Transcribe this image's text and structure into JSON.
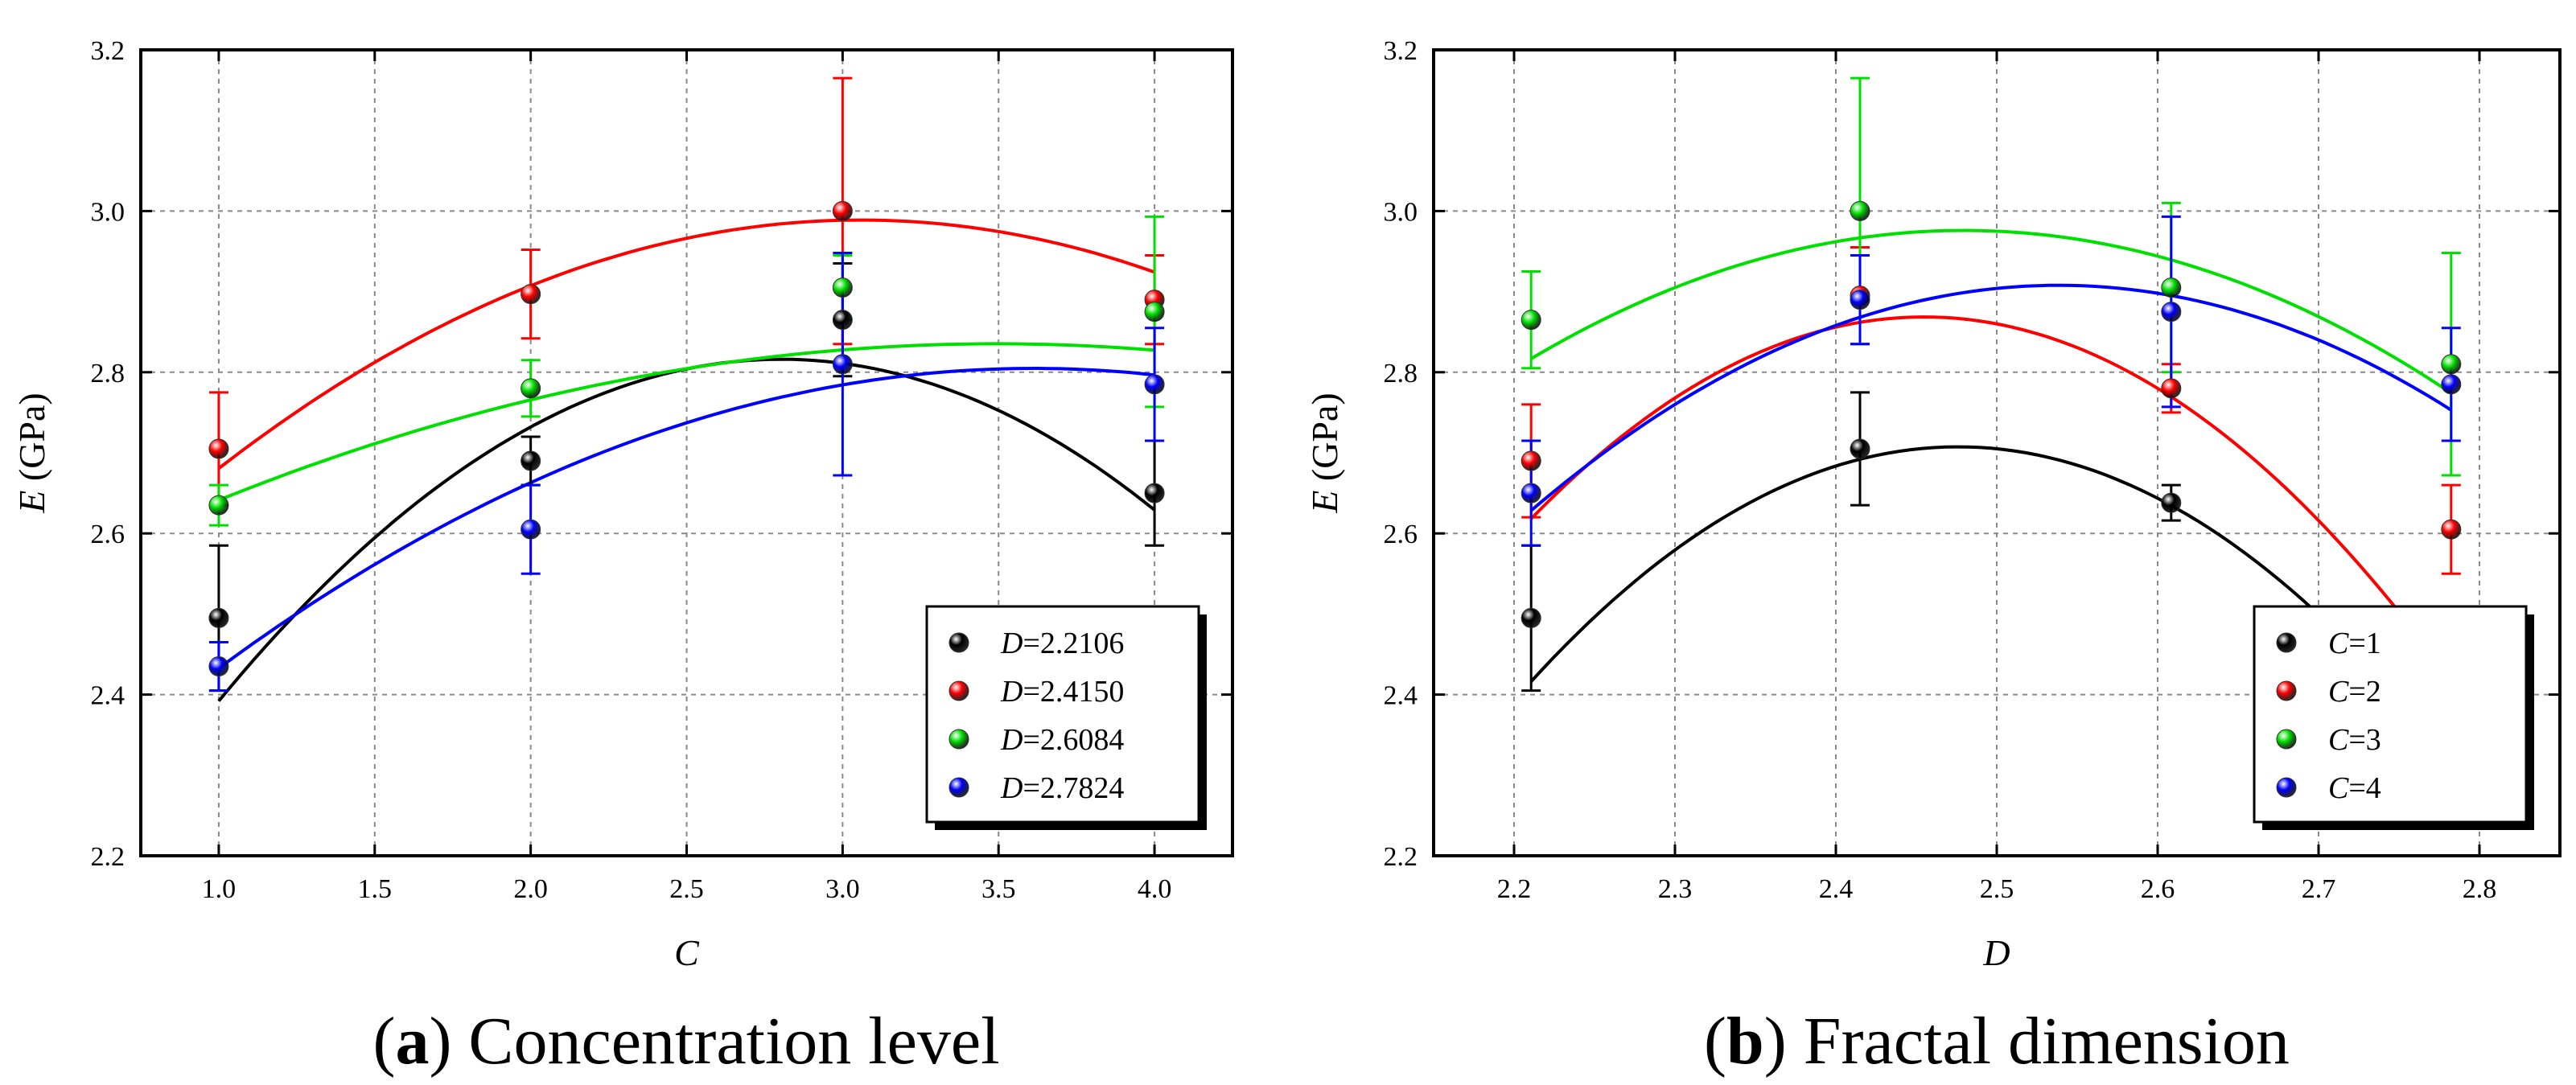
{
  "chart_data": [
    {
      "type": "scatter",
      "panel": "a",
      "caption_letter": "a",
      "caption_text": " Concentration level",
      "xlabel": "C",
      "ylabel_var": "E",
      "ylabel_unit": " (GPa)",
      "xlim": [
        0.75,
        4.25
      ],
      "ylim": [
        2.2,
        3.2
      ],
      "xticks": [
        1.0,
        1.5,
        2.0,
        2.5,
        3.0,
        3.5,
        4.0
      ],
      "xtick_labels": [
        "1.0",
        "1.5",
        "2.0",
        "2.5",
        "3.0",
        "3.5",
        "4.0"
      ],
      "yticks": [
        2.2,
        2.4,
        2.6,
        2.8,
        3.0,
        3.2
      ],
      "ytick_labels": [
        "2.2",
        "2.4",
        "2.6",
        "2.8",
        "3.0",
        "3.2"
      ],
      "grid": true,
      "legend_position": "bottom-right",
      "legend_var": "D",
      "x": [
        1.0,
        2.0,
        3.0,
        4.0
      ],
      "series": [
        {
          "name": "=2.2106",
          "color": "#000000",
          "values": [
            2.495,
            2.69,
            2.865,
            2.65
          ],
          "err": [
            0.09,
            0.03,
            0.07,
            0.065
          ],
          "fit": [
            -0.1305,
            0.7315,
            1.791
          ]
        },
        {
          "name": "=2.4150",
          "color": "#ff0000",
          "values": [
            2.705,
            2.897,
            3.0,
            2.89
          ],
          "err": [
            0.07,
            0.055,
            0.165,
            0.055
          ],
          "fit": [
            -0.0728,
            0.4452,
            2.3082
          ]
        },
        {
          "name": "=2.6084",
          "color": "#00e000",
          "values": [
            2.635,
            2.78,
            2.905,
            2.875
          ],
          "err": [
            0.025,
            0.035,
            0.04,
            0.118
          ],
          "fit": [
            -0.0312,
            0.218,
            2.4545
          ]
        },
        {
          "name": "=2.7824",
          "color": "#0000ff",
          "values": [
            2.435,
            2.605,
            2.81,
            2.785
          ],
          "err": [
            0.03,
            0.055,
            0.138,
            0.07
          ],
          "fit": [
            -0.0545,
            0.3938,
            2.0934
          ]
        }
      ]
    },
    {
      "type": "scatter",
      "panel": "b",
      "caption_letter": "b",
      "caption_text": " Fractal dimension",
      "xlabel": "D",
      "ylabel_var": "E",
      "ylabel_unit": " (GPa)",
      "xlim": [
        2.15,
        2.85
      ],
      "ylim": [
        2.2,
        3.2
      ],
      "xticks": [
        2.2,
        2.3,
        2.4,
        2.5,
        2.6,
        2.7,
        2.8
      ],
      "xtick_labels": [
        "2.2",
        "2.3",
        "2.4",
        "2.5",
        "2.6",
        "2.7",
        "2.8"
      ],
      "yticks": [
        2.2,
        2.4,
        2.6,
        2.8,
        3.0,
        3.2
      ],
      "ytick_labels": [
        "2.2",
        "2.4",
        "2.6",
        "2.8",
        "3.0",
        "3.2"
      ],
      "grid": true,
      "legend_position": "bottom-right",
      "legend_var": "C",
      "x": [
        2.2106,
        2.415,
        2.6084,
        2.7824
      ],
      "series": [
        {
          "name": "=1",
          "color": "#000000",
          "values": [
            2.495,
            2.705,
            2.638,
            2.435
          ],
          "err": [
            0.09,
            0.07,
            0.022,
            0.025
          ],
          "fit": [
            -4.14,
            20.5,
            -22.67
          ]
        },
        {
          "name": "=2",
          "color": "#ff0000",
          "values": [
            2.69,
            2.895,
            2.78,
            2.605
          ],
          "err": [
            0.07,
            0.06,
            0.03,
            0.055
          ],
          "fit": [
            -4.2,
            20.62,
            -22.44
          ]
        },
        {
          "name": "=3",
          "color": "#00e000",
          "values": [
            2.865,
            3.0,
            2.905,
            2.81
          ],
          "err": [
            0.06,
            0.165,
            0.105,
            0.138
          ],
          "fit": [
            -2.2,
            10.91,
            -10.55
          ]
        },
        {
          "name": "=4",
          "color": "#0000ff",
          "values": [
            2.65,
            2.89,
            2.875,
            2.785
          ],
          "err": [
            0.065,
            0.055,
            0.118,
            0.07
          ],
          "fit": [
            -2.6,
            13.2,
            -13.846
          ]
        }
      ]
    }
  ]
}
